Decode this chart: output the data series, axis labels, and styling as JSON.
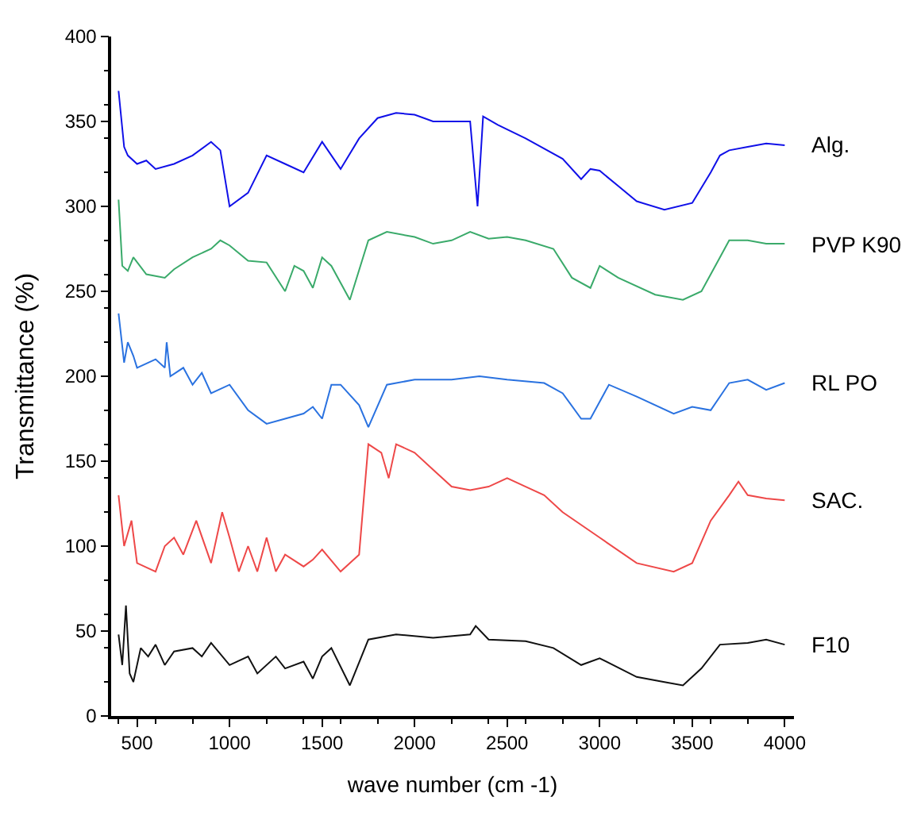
{
  "chart_data": {
    "type": "line",
    "xlabel": "wave number (cm -1)",
    "ylabel": "Transmittance (%)",
    "xlim": [
      360,
      4050
    ],
    "ylim": [
      0,
      400
    ],
    "xticks": [
      500,
      1000,
      1500,
      2000,
      2500,
      3000,
      3500,
      4000
    ],
    "yticks": [
      0,
      50,
      100,
      150,
      200,
      250,
      300,
      350,
      400
    ],
    "legend": false,
    "marker": "none",
    "line_style": "solid",
    "series": [
      {
        "name": "Alg.",
        "color": "#1010e8",
        "x": [
          400,
          430,
          450,
          500,
          550,
          600,
          700,
          800,
          900,
          950,
          1000,
          1100,
          1200,
          1300,
          1400,
          1500,
          1600,
          1700,
          1800,
          1900,
          2000,
          2100,
          2200,
          2300,
          2340,
          2370,
          2450,
          2600,
          2800,
          2900,
          2950,
          3000,
          3100,
          3200,
          3350,
          3500,
          3600,
          3650,
          3700,
          3800,
          3900,
          4000
        ],
        "values": [
          368,
          335,
          330,
          325,
          327,
          322,
          325,
          330,
          338,
          333,
          300,
          308,
          330,
          325,
          320,
          338,
          322,
          340,
          352,
          355,
          354,
          350,
          350,
          350,
          300,
          353,
          348,
          340,
          328,
          316,
          322,
          321,
          312,
          303,
          298,
          302,
          320,
          330,
          333,
          335,
          337,
          336
        ]
      },
      {
        "name": "PVP K90",
        "color": "#3aaa6a",
        "x": [
          400,
          420,
          450,
          480,
          550,
          650,
          700,
          800,
          900,
          950,
          1000,
          1100,
          1200,
          1300,
          1350,
          1400,
          1450,
          1500,
          1550,
          1650,
          1750,
          1850,
          2000,
          2100,
          2200,
          2300,
          2400,
          2500,
          2600,
          2750,
          2850,
          2950,
          3000,
          3100,
          3300,
          3450,
          3550,
          3650,
          3700,
          3800,
          3900,
          4000
        ],
        "values": [
          304,
          265,
          262,
          270,
          260,
          258,
          263,
          270,
          275,
          280,
          277,
          268,
          267,
          250,
          265,
          262,
          252,
          270,
          265,
          245,
          280,
          285,
          282,
          278,
          280,
          285,
          281,
          282,
          280,
          275,
          258,
          252,
          265,
          258,
          248,
          245,
          250,
          270,
          280,
          280,
          278,
          278
        ]
      },
      {
        "name": "RL PO",
        "color": "#2a72e0",
        "x": [
          400,
          430,
          450,
          480,
          500,
          600,
          650,
          660,
          680,
          750,
          800,
          850,
          900,
          1000,
          1100,
          1200,
          1300,
          1400,
          1450,
          1500,
          1550,
          1600,
          1700,
          1750,
          1850,
          2000,
          2200,
          2350,
          2500,
          2700,
          2800,
          2900,
          2950,
          3050,
          3200,
          3400,
          3500,
          3600,
          3700,
          3800,
          3900,
          4000
        ],
        "values": [
          237,
          208,
          220,
          212,
          205,
          210,
          205,
          220,
          200,
          205,
          195,
          202,
          190,
          195,
          180,
          172,
          175,
          178,
          182,
          175,
          195,
          195,
          183,
          170,
          195,
          198,
          198,
          200,
          198,
          196,
          190,
          175,
          175,
          195,
          188,
          178,
          182,
          180,
          196,
          198,
          192,
          196
        ]
      },
      {
        "name": "SAC.",
        "color": "#ee4848",
        "x": [
          400,
          430,
          470,
          500,
          600,
          650,
          700,
          750,
          820,
          900,
          960,
          1000,
          1050,
          1100,
          1150,
          1200,
          1250,
          1300,
          1400,
          1450,
          1500,
          1600,
          1700,
          1750,
          1820,
          1860,
          1900,
          2000,
          2100,
          2200,
          2300,
          2400,
          2500,
          2600,
          2700,
          2800,
          3000,
          3200,
          3400,
          3500,
          3600,
          3700,
          3750,
          3800,
          3900,
          4000
        ],
        "values": [
          130,
          100,
          115,
          90,
          85,
          100,
          105,
          95,
          115,
          90,
          120,
          105,
          85,
          100,
          85,
          105,
          85,
          95,
          88,
          92,
          98,
          85,
          95,
          160,
          155,
          140,
          160,
          155,
          145,
          135,
          133,
          135,
          140,
          135,
          130,
          120,
          105,
          90,
          85,
          90,
          115,
          130,
          138,
          130,
          128,
          127
        ]
      },
      {
        "name": "F10",
        "color": "#111111",
        "x": [
          400,
          420,
          440,
          460,
          480,
          520,
          560,
          600,
          650,
          700,
          800,
          850,
          900,
          1000,
          1100,
          1150,
          1250,
          1300,
          1400,
          1450,
          1500,
          1550,
          1650,
          1750,
          1900,
          2100,
          2300,
          2330,
          2400,
          2600,
          2750,
          2900,
          3000,
          3200,
          3350,
          3450,
          3550,
          3650,
          3800,
          3900,
          4000
        ],
        "values": [
          48,
          30,
          65,
          25,
          20,
          40,
          35,
          42,
          30,
          38,
          40,
          35,
          43,
          30,
          35,
          25,
          35,
          28,
          32,
          22,
          35,
          40,
          18,
          45,
          48,
          46,
          48,
          53,
          45,
          44,
          40,
          30,
          34,
          23,
          20,
          18,
          28,
          42,
          43,
          45,
          42
        ]
      }
    ]
  }
}
